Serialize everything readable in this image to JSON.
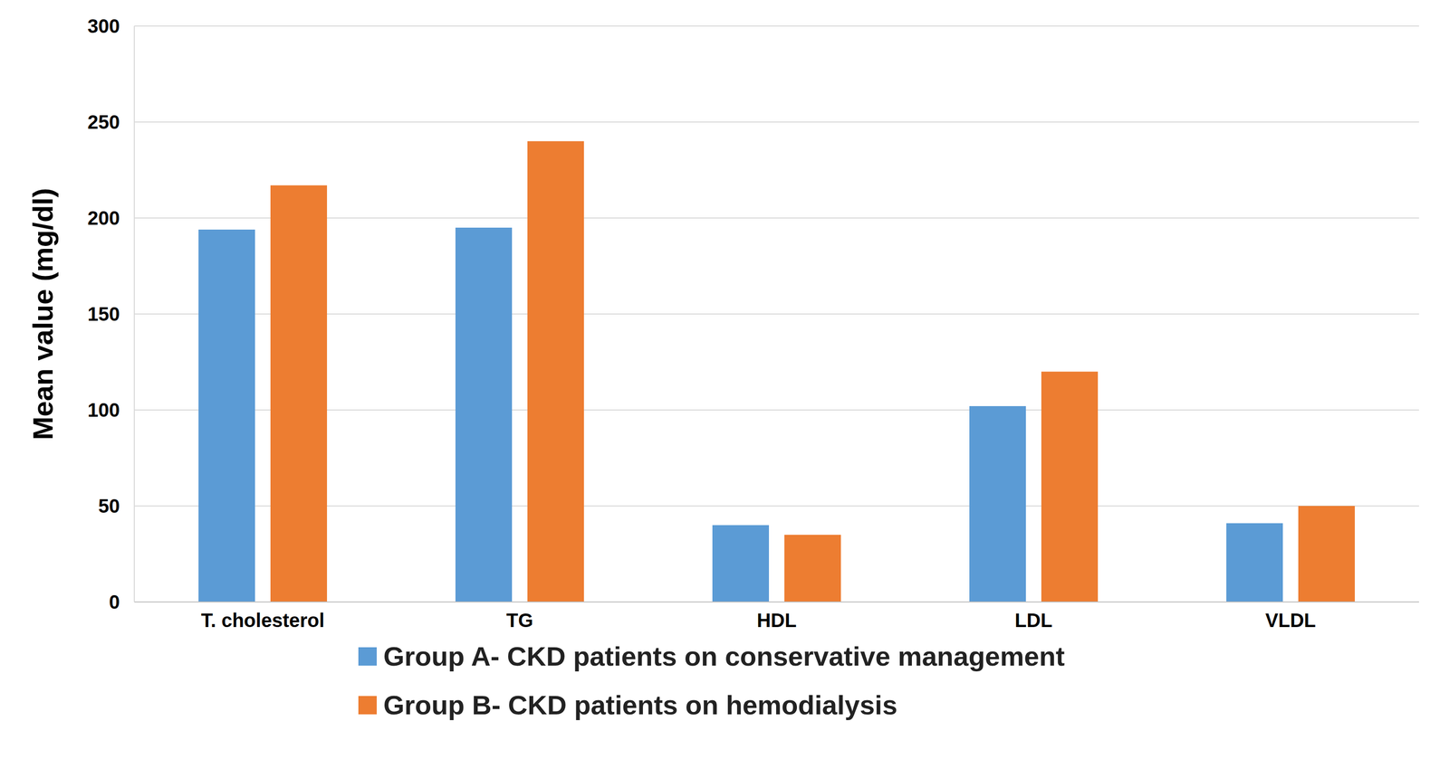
{
  "chart_data": {
    "type": "bar",
    "y_label": "Mean value (mg/dl)",
    "categories": [
      "T. cholesterol",
      "TG",
      "HDL",
      "LDL",
      "VLDL"
    ],
    "series": [
      {
        "name": "Group A- CKD patients on conservative management",
        "color": "#5b9bd5",
        "values": [
          194,
          195,
          40,
          102,
          41
        ]
      },
      {
        "name": "Group B- CKD patients on hemodialysis",
        "color": "#ed7d31",
        "values": [
          217,
          240,
          35,
          120,
          50
        ]
      }
    ],
    "ylim": [
      0,
      300
    ],
    "yticks": [
      0,
      50,
      100,
      150,
      200,
      250,
      300
    ],
    "grid": true,
    "legend": "bottom"
  }
}
